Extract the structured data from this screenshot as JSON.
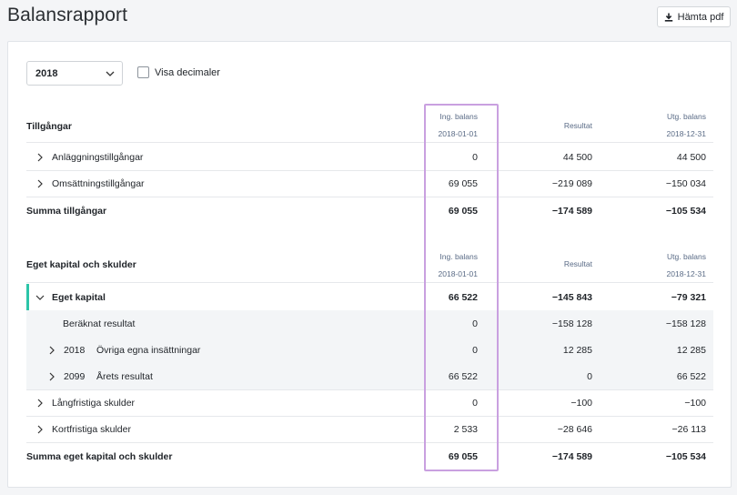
{
  "page": {
    "title": "Balansrapport",
    "pdf_button_label": "Hämta pdf"
  },
  "filters": {
    "year": "2018",
    "decimals_label": "Visa decimaler",
    "decimals_checked": false
  },
  "columns": {
    "opening": {
      "label": "Ing. balans",
      "date": "2018-01-01"
    },
    "result": {
      "label": "Resultat"
    },
    "closing": {
      "label": "Utg. balans",
      "date": "2018-12-31"
    }
  },
  "assets": {
    "title": "Tillgångar",
    "rows": [
      {
        "label": "Anläggningstillgångar",
        "opening": "0",
        "result": "44 500",
        "closing": "44 500"
      },
      {
        "label": "Omsättningstillgångar",
        "opening": "69 055",
        "result": "−219 089",
        "closing": "−150 034"
      }
    ],
    "total": {
      "label": "Summa tillgångar",
      "opening": "69 055",
      "result": "−174 589",
      "closing": "−105 534"
    }
  },
  "equity": {
    "title": "Eget kapital och skulder",
    "group": {
      "label": "Eget kapital",
      "opening": "66 522",
      "result": "−145 843",
      "closing": "−79 321"
    },
    "subrows": [
      {
        "code": "",
        "label": "Beräknat resultat",
        "opening": "0",
        "result": "−158 128",
        "closing": "−158 128"
      },
      {
        "code": "2018",
        "label": "Övriga egna insättningar",
        "opening": "0",
        "result": "12 285",
        "closing": "12 285"
      },
      {
        "code": "2099",
        "label": "Årets resultat",
        "opening": "66 522",
        "result": "0",
        "closing": "66 522"
      }
    ],
    "rows": [
      {
        "label": "Långfristiga skulder",
        "opening": "0",
        "result": "−100",
        "closing": "−100"
      },
      {
        "label": "Kortfristiga skulder",
        "opening": "2 533",
        "result": "−28 646",
        "closing": "−26 113"
      }
    ],
    "total": {
      "label": "Summa eget kapital och skulder",
      "opening": "69 055",
      "result": "−174 589",
      "closing": "−105 534"
    }
  },
  "colors": {
    "accent": "#2cc5a8",
    "highlight": "#c9a0e0",
    "header_text": "#5a6b86"
  }
}
